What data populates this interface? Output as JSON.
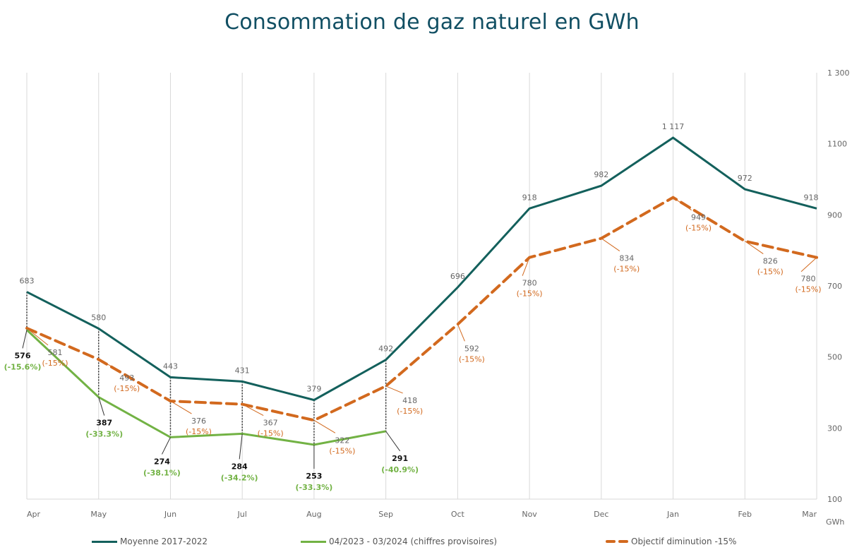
{
  "chart_data": {
    "type": "line",
    "title": "Consommation de gaz naturel en GWh",
    "categories": [
      "Apr",
      "May",
      "Jun",
      "Jul",
      "Aug",
      "Sep",
      "Oct",
      "Nov",
      "Dec",
      "Jan",
      "Feb",
      "Mar"
    ],
    "ylabel": "GWh",
    "ylim": [
      100,
      1300
    ],
    "yticks": [
      "100",
      "300",
      "500",
      "700",
      "900",
      "1100",
      "1 300"
    ],
    "ytick_values": [
      100,
      300,
      500,
      700,
      900,
      1100,
      1300
    ],
    "y_axis_side": "right",
    "grid": "vertical",
    "legend_position": "bottom",
    "series": [
      {
        "name": "Moyenne 2017-2022",
        "color": "#13605c",
        "style": "solid",
        "values": [
          683,
          580,
          443,
          431,
          379,
          492,
          696,
          918,
          982,
          1117,
          972,
          918
        ],
        "labels": [
          "683",
          "580",
          "443",
          "431",
          "379",
          "492",
          "696",
          "918",
          "982",
          "1 117",
          "972",
          "918"
        ]
      },
      {
        "name": "04/2023 - 03/2024 (chiffres provisoires)",
        "color": "#72b244",
        "style": "solid",
        "values": [
          576,
          387,
          274,
          284,
          253,
          291,
          null,
          null,
          null,
          null,
          null,
          null
        ],
        "labels": [
          "576",
          "387",
          "274",
          "284",
          "253",
          "291"
        ],
        "pct": [
          "(-15.6%)",
          "(-33.3%)",
          "(-38.1%)",
          "(-34.2%)",
          "(-33.3%)",
          "(-40.9%)"
        ]
      },
      {
        "name": "Objectif diminution -15%",
        "color": "#d2691e",
        "style": "dashed",
        "values": [
          581,
          493,
          376,
          367,
          322,
          418,
          592,
          780,
          834,
          949,
          826,
          780
        ],
        "labels": [
          "581",
          "493",
          "376",
          "367",
          "322",
          "418",
          "592",
          "780",
          "834",
          "949",
          "826",
          "780"
        ],
        "pct": "(-15%)"
      }
    ]
  },
  "legend": {
    "item1": "Moyenne 2017-2022",
    "item2": "04/2023 - 03/2024 (chiffres provisoires)",
    "item3": "Objectif diminution -15%"
  }
}
